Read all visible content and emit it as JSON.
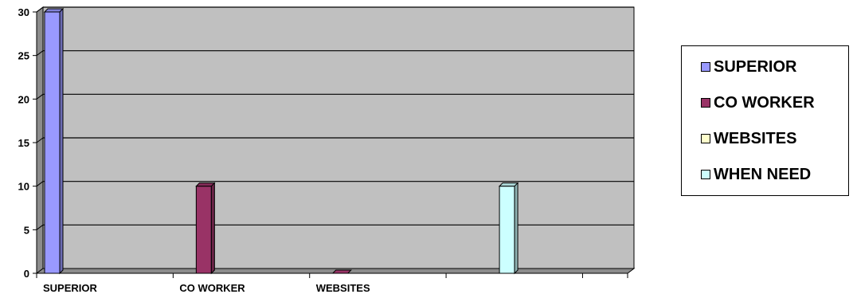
{
  "chart_data": {
    "type": "bar",
    "categories": [
      "SUPERIOR",
      "CO WORKER",
      "WEBSITES",
      ""
    ],
    "series": [
      {
        "name": "SUPERIOR",
        "color": "#9999ff",
        "values": [
          30,
          0,
          0,
          0
        ]
      },
      {
        "name": "CO WORKER",
        "color": "#993366",
        "values": [
          0,
          10,
          0,
          0
        ]
      },
      {
        "name": "WEBSITES",
        "color": "#ffffcc",
        "values": [
          0,
          0,
          0,
          0
        ]
      },
      {
        "name": "WHEN NEED",
        "color": "#ccffff",
        "values": [
          0,
          0,
          0,
          10
        ]
      }
    ],
    "ylim": [
      0,
      30
    ],
    "yticks": [
      "0",
      "5",
      "10",
      "15",
      "20",
      "25",
      "30"
    ],
    "grid": true,
    "legend_position": "right",
    "plot_background": "#c0c0c0"
  },
  "legend": {
    "items": [
      {
        "label": "SUPERIOR",
        "color": "#9999ff"
      },
      {
        "label": "CO WORKER",
        "color": "#993366"
      },
      {
        "label": "WEBSITES",
        "color": "#ffffcc"
      },
      {
        "label": "WHEN NEED",
        "color": "#ccffff"
      }
    ]
  }
}
